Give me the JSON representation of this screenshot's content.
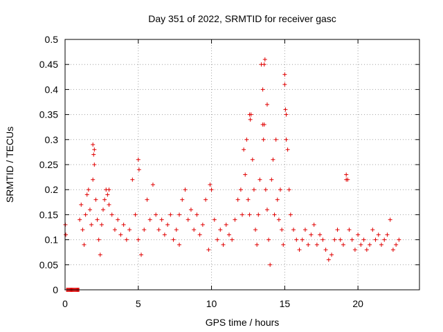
{
  "chart_data": {
    "type": "scatter",
    "title": "Day 351 of 2022, SRMTID for receiver gasc",
    "xlabel": "GPS time / hours",
    "ylabel": "SRMTID / TECUs",
    "xlim": [
      0,
      24.2
    ],
    "ylim": [
      0,
      0.5
    ],
    "xticks": [
      0,
      5,
      10,
      15,
      20
    ],
    "xtick_labels": [
      "0",
      "5",
      "10",
      "15",
      "20"
    ],
    "yticks": [
      0,
      0.05,
      0.1,
      0.15,
      0.2,
      0.25,
      0.3,
      0.35,
      0.4,
      0.45,
      0.5
    ],
    "ytick_labels": [
      "0",
      "0.05",
      "0.1",
      "0.15",
      "0.2",
      "0.25",
      "0.3",
      "0.35",
      "0.4",
      "0.45",
      "0.5"
    ],
    "grid": true,
    "marker": "+",
    "color": "#e00000",
    "series": [
      {
        "name": "SRMTID",
        "x": [
          0.02,
          0.05,
          0.1,
          0.15,
          0.2,
          0.25,
          0.3,
          0.35,
          0.4,
          0.45,
          0.5,
          0.55,
          0.6,
          0.65,
          0.7,
          0.75,
          0.8,
          0.85,
          0.9,
          0.95,
          1.0,
          1.1,
          1.2,
          1.3,
          1.4,
          1.5,
          1.6,
          1.7,
          1.8,
          1.9,
          2.0,
          2.1,
          2.2,
          2.3,
          2.4,
          2.5,
          2.6,
          2.7,
          2.8,
          2.9,
          3.0,
          3.2,
          3.4,
          3.6,
          3.8,
          4.0,
          4.2,
          4.4,
          4.6,
          4.8,
          5.0,
          5.2,
          5.4,
          5.6,
          5.8,
          6.0,
          6.2,
          6.4,
          6.6,
          6.8,
          7.0,
          7.2,
          7.4,
          7.6,
          7.8,
          8.0,
          8.2,
          8.4,
          8.6,
          8.8,
          9.0,
          9.2,
          9.4,
          9.6,
          9.8,
          10.0,
          10.2,
          10.4,
          10.6,
          10.8,
          11.0,
          11.2,
          11.4,
          11.6,
          11.8,
          12.0,
          12.1,
          12.2,
          12.3,
          12.4,
          12.5,
          12.6,
          12.7,
          12.8,
          12.9,
          13.0,
          13.1,
          13.2,
          13.3,
          13.4,
          13.5,
          13.6,
          13.7,
          13.8,
          13.9,
          14.0,
          14.1,
          14.2,
          14.3,
          14.4,
          14.5,
          14.6,
          14.7,
          14.8,
          14.9,
          15.0,
          15.1,
          15.2,
          15.3,
          15.4,
          15.6,
          15.8,
          16.0,
          16.2,
          16.4,
          16.6,
          16.8,
          17.0,
          17.2,
          17.4,
          17.6,
          17.8,
          18.0,
          18.2,
          18.4,
          18.6,
          18.8,
          19.0,
          19.2,
          19.4,
          19.6,
          19.8,
          20.0,
          20.2,
          20.4,
          20.6,
          20.8,
          21.0,
          21.2,
          21.4,
          21.6,
          21.8,
          22.0,
          22.2,
          22.4,
          22.6,
          22.8,
          1.9,
          1.95,
          2.0,
          3.0,
          5.0,
          5.05,
          7.8,
          9.9,
          12.6,
          12.65,
          13.5,
          13.55,
          13.6,
          13.65,
          13.8,
          15.0,
          15.05,
          15.1,
          19.2,
          19.3
        ],
        "y": [
          0.13,
          0.11,
          0.0,
          0.0,
          0.0,
          0.0,
          0.0,
          0.0,
          0.0,
          0.0,
          0.0,
          0.0,
          0.0,
          0.0,
          0.0,
          0.0,
          0.0,
          0.0,
          0.0,
          0.0,
          0.14,
          0.17,
          0.12,
          0.09,
          0.15,
          0.19,
          0.2,
          0.16,
          0.13,
          0.22,
          0.25,
          0.18,
          0.14,
          0.1,
          0.07,
          0.13,
          0.16,
          0.18,
          0.2,
          0.19,
          0.17,
          0.15,
          0.12,
          0.14,
          0.11,
          0.13,
          0.1,
          0.12,
          0.22,
          0.15,
          0.1,
          0.07,
          0.12,
          0.18,
          0.14,
          0.21,
          0.15,
          0.12,
          0.14,
          0.11,
          0.13,
          0.15,
          0.1,
          0.12,
          0.09,
          0.18,
          0.2,
          0.14,
          0.16,
          0.12,
          0.15,
          0.11,
          0.13,
          0.18,
          0.08,
          0.2,
          0.14,
          0.1,
          0.12,
          0.09,
          0.13,
          0.11,
          0.1,
          0.14,
          0.18,
          0.2,
          0.15,
          0.28,
          0.23,
          0.3,
          0.18,
          0.15,
          0.35,
          0.26,
          0.2,
          0.12,
          0.09,
          0.15,
          0.22,
          0.45,
          0.4,
          0.33,
          0.2,
          0.16,
          0.1,
          0.05,
          0.22,
          0.26,
          0.15,
          0.3,
          0.18,
          0.14,
          0.2,
          0.12,
          0.09,
          0.41,
          0.35,
          0.28,
          0.2,
          0.15,
          0.12,
          0.1,
          0.08,
          0.1,
          0.12,
          0.09,
          0.11,
          0.13,
          0.09,
          0.11,
          0.1,
          0.08,
          0.06,
          0.07,
          0.1,
          0.12,
          0.1,
          0.09,
          0.22,
          0.12,
          0.1,
          0.08,
          0.11,
          0.09,
          0.1,
          0.08,
          0.09,
          0.12,
          0.1,
          0.11,
          0.09,
          0.1,
          0.11,
          0.14,
          0.08,
          0.09,
          0.1,
          0.29,
          0.27,
          0.28,
          0.2,
          0.26,
          0.24,
          0.15,
          0.21,
          0.35,
          0.34,
          0.33,
          0.3,
          0.45,
          0.46,
          0.37,
          0.43,
          0.36,
          0.3,
          0.23,
          0.22
        ]
      }
    ]
  }
}
